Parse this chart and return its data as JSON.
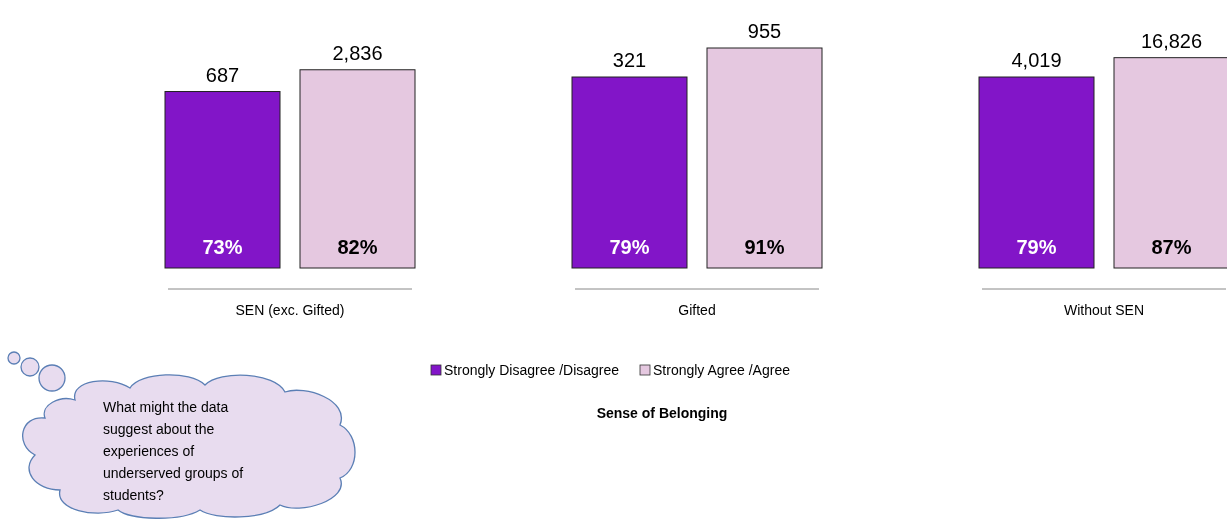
{
  "chart_data": {
    "type": "bar",
    "title": "Sense of Belonging",
    "categories": [
      "SEN (exc. Gifted)",
      "Gifted",
      "Without SEN"
    ],
    "series": [
      {
        "name": "Strongly Disagree /Disagree",
        "color": "#8215c8",
        "values": [
          73,
          79,
          79
        ],
        "value_labels": [
          "73%",
          "79%",
          "79%"
        ]
      },
      {
        "name": "Strongly Agree /Agree",
        "color": "#e5c8e0",
        "values": [
          82,
          91,
          87
        ],
        "value_labels": [
          "82%",
          "91%",
          "87%"
        ]
      }
    ],
    "annotations": [
      "687",
      "2,836",
      "321",
      "955",
      "4,019",
      "16,826",
      "What might the data suggest about the experiences of underserved groups of students?"
    ],
    "legend": "bottom"
  }
}
